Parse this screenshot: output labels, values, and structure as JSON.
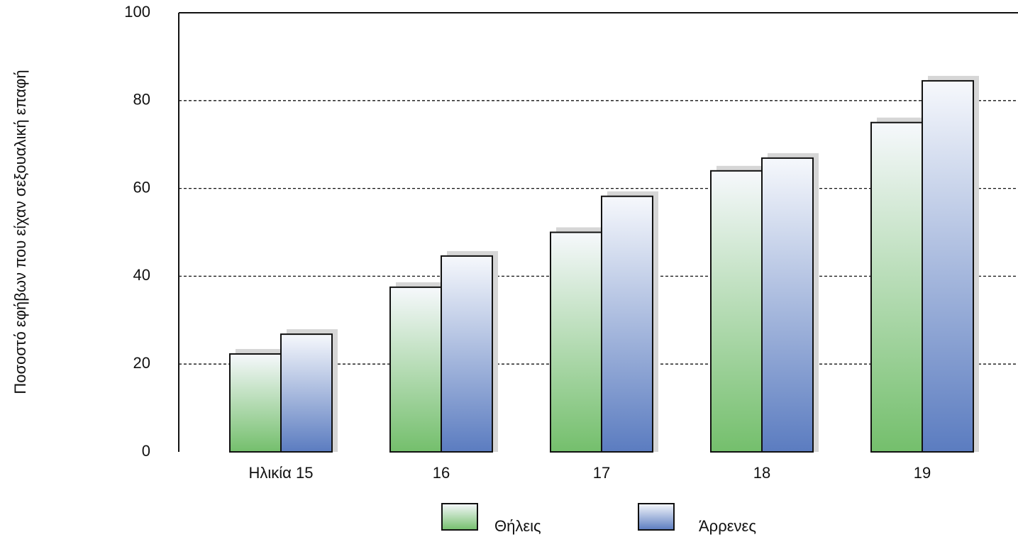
{
  "chart_data": {
    "type": "bar",
    "y_label": "Ποσοστό εφήβων που είχαν σεξουαλική επαφή",
    "categories": [
      "Ηλικία 15",
      "16",
      "17",
      "18",
      "19"
    ],
    "series": [
      {
        "name": "Θήλεις",
        "color": "#74bf6c",
        "values": [
          22.3,
          37.5,
          50,
          64,
          75
        ]
      },
      {
        "name": "Άρρενες",
        "color": "#5b7cc0",
        "values": [
          26.8,
          44.6,
          58.2,
          66.9,
          84.5
        ]
      }
    ],
    "ylim": [
      0,
      100
    ],
    "yticks": [
      0,
      20,
      40,
      60,
      80,
      100
    ],
    "grid": true
  }
}
